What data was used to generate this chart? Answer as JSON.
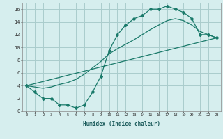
{
  "xlabel": "Humidex (Indice chaleur)",
  "bg_color": "#d6eeee",
  "grid_color": "#aacccc",
  "line_color": "#1a7a6a",
  "xlim": [
    -0.5,
    23.5
  ],
  "ylim": [
    0,
    17
  ],
  "xticks": [
    0,
    1,
    2,
    3,
    4,
    5,
    6,
    7,
    8,
    9,
    10,
    11,
    12,
    13,
    14,
    15,
    16,
    17,
    18,
    19,
    20,
    21,
    22,
    23
  ],
  "yticks": [
    0,
    2,
    4,
    6,
    8,
    10,
    12,
    14,
    16
  ],
  "line1_x": [
    0,
    1,
    2,
    3,
    4,
    5,
    6,
    7,
    8,
    9,
    10,
    11,
    12,
    13,
    14,
    15,
    16,
    17,
    18,
    19,
    20,
    21,
    22,
    23
  ],
  "line1_y": [
    4,
    3,
    2,
    2,
    1,
    1,
    0.5,
    1,
    3,
    5.5,
    9.5,
    12,
    13.5,
    14.5,
    15,
    16,
    16,
    16.5,
    16,
    15.5,
    14.5,
    12,
    12,
    11.5
  ],
  "line2_x": [
    0,
    1,
    2,
    3,
    4,
    5,
    6,
    7,
    8,
    9,
    10,
    11,
    12,
    13,
    14,
    15,
    16,
    17,
    18,
    19,
    20,
    21,
    22,
    23
  ],
  "line2_y": [
    4,
    3.8,
    3.6,
    3.8,
    4.2,
    4.5,
    5.0,
    5.8,
    6.8,
    7.8,
    9.0,
    9.8,
    10.5,
    11.2,
    12.0,
    12.8,
    13.5,
    14.2,
    14.5,
    14.2,
    13.5,
    12.5,
    12.0,
    11.5
  ],
  "line3_x": [
    0,
    23
  ],
  "line3_y": [
    4,
    11.5
  ]
}
